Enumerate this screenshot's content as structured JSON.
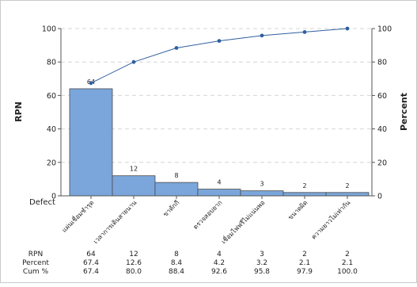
{
  "chart_data": {
    "type": "bar",
    "subtype": "pareto",
    "title": "",
    "xlabel": "Defect",
    "ylabel_left": "RPN",
    "ylabel_right": "Percent",
    "ylim_left": [
      0,
      100
    ],
    "ylim_right": [
      0,
      100
    ],
    "left_ticks": [
      0,
      20,
      40,
      60,
      80,
      100
    ],
    "right_ticks": [
      0,
      20,
      40,
      60,
      80,
      100
    ],
    "grid": "dashed horizontal",
    "categories": [
      "แผ่นเชื่อมชำรุด",
      "เวลาการเดินสายนาน",
      "ขาดักกี",
      "ตรวจสอบยาก",
      "เชื่อมไฟฟรีไม่แน่นพอ",
      "ขนาดผิด",
      "ความยาวไม่เท่ากัน"
    ],
    "values": [
      64,
      12,
      8,
      4,
      3,
      2,
      2
    ],
    "bar_labels": [
      "64",
      "12",
      "8",
      "4",
      "3",
      "2",
      "2"
    ],
    "cumulative": [
      67.4,
      80.0,
      88.4,
      92.6,
      95.8,
      97.9,
      100.0
    ],
    "colors": {
      "bar": "#7aa6dc",
      "bar_edge": "#4a4a4a",
      "line": "#2f5f9f",
      "grid": "#d6d6d6"
    }
  },
  "table": {
    "row_labels": [
      "RPN",
      "Percent",
      "Cum %"
    ],
    "rpn": [
      "64",
      "12",
      "8",
      "4",
      "3",
      "2",
      "2"
    ],
    "percent": [
      "67.4",
      "12.6",
      "8.4",
      "4.2",
      "3.2",
      "2.1",
      "2.1"
    ],
    "cum": [
      "67.4",
      "80.0",
      "88.4",
      "92.6",
      "95.8",
      "97.9",
      "100.0"
    ]
  }
}
